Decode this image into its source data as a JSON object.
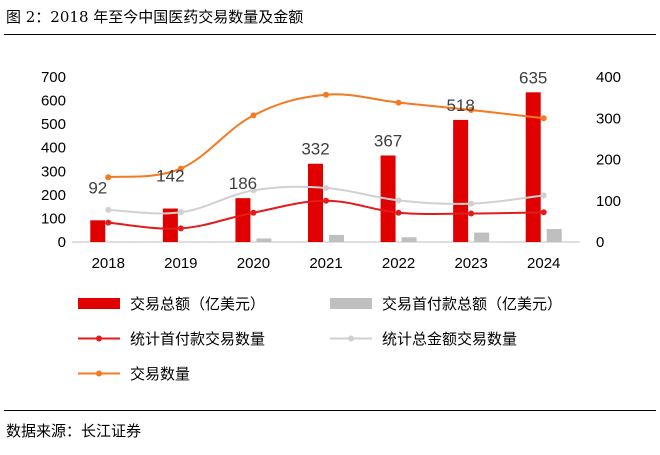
{
  "title": "图 2：2018 年至今中国医药交易数量及金额",
  "source": "数据来源：长江证券",
  "colors": {
    "red": "#e00000",
    "gray": "#bfbfbf",
    "dark_red_line": "#e31b1b",
    "light_gray_line": "#d0d0d0",
    "orange": "#f47920",
    "axis": "#bfbfbf"
  },
  "chart_data": {
    "type": "bar",
    "categories": [
      "2018",
      "2019",
      "2020",
      "2021",
      "2022",
      "2023",
      "2024"
    ],
    "y_left": {
      "min": 0,
      "max": 700,
      "ticks": [
        "0",
        "100",
        "200",
        "300",
        "400",
        "500",
        "600",
        "700"
      ]
    },
    "y_right": {
      "min": 0,
      "max": 400,
      "ticks": [
        "0",
        "100",
        "200",
        "300",
        "400"
      ]
    },
    "series": [
      {
        "name": "交易总额（亿美元）",
        "type": "bar",
        "axis": "left",
        "values": [
          92,
          142,
          186,
          332,
          367,
          518,
          635
        ]
      },
      {
        "name": "交易首付款总额（亿美元）",
        "type": "bar",
        "axis": "left",
        "values": [
          0,
          0,
          15,
          30,
          20,
          40,
          55
        ]
      },
      {
        "name": "统计首付款交易数量",
        "type": "line",
        "axis": "right",
        "values": [
          47,
          33,
          71,
          100,
          71,
          69,
          72
        ]
      },
      {
        "name": "统计总金额交易数量",
        "type": "line",
        "axis": "right",
        "values": [
          78,
          72,
          125,
          131,
          101,
          93,
          113
        ]
      },
      {
        "name": "交易数量",
        "type": "line",
        "axis": "right",
        "values": [
          157,
          178,
          307,
          357,
          338,
          320,
          300
        ]
      }
    ],
    "data_labels": [
      "92",
      "142",
      "186",
      "332",
      "367",
      "518",
      "635"
    ],
    "legend": [
      "交易总额（亿美元）",
      "交易首付款总额（亿美元）",
      "统计首付款交易数量",
      "统计总金额交易数量",
      "交易数量"
    ]
  }
}
